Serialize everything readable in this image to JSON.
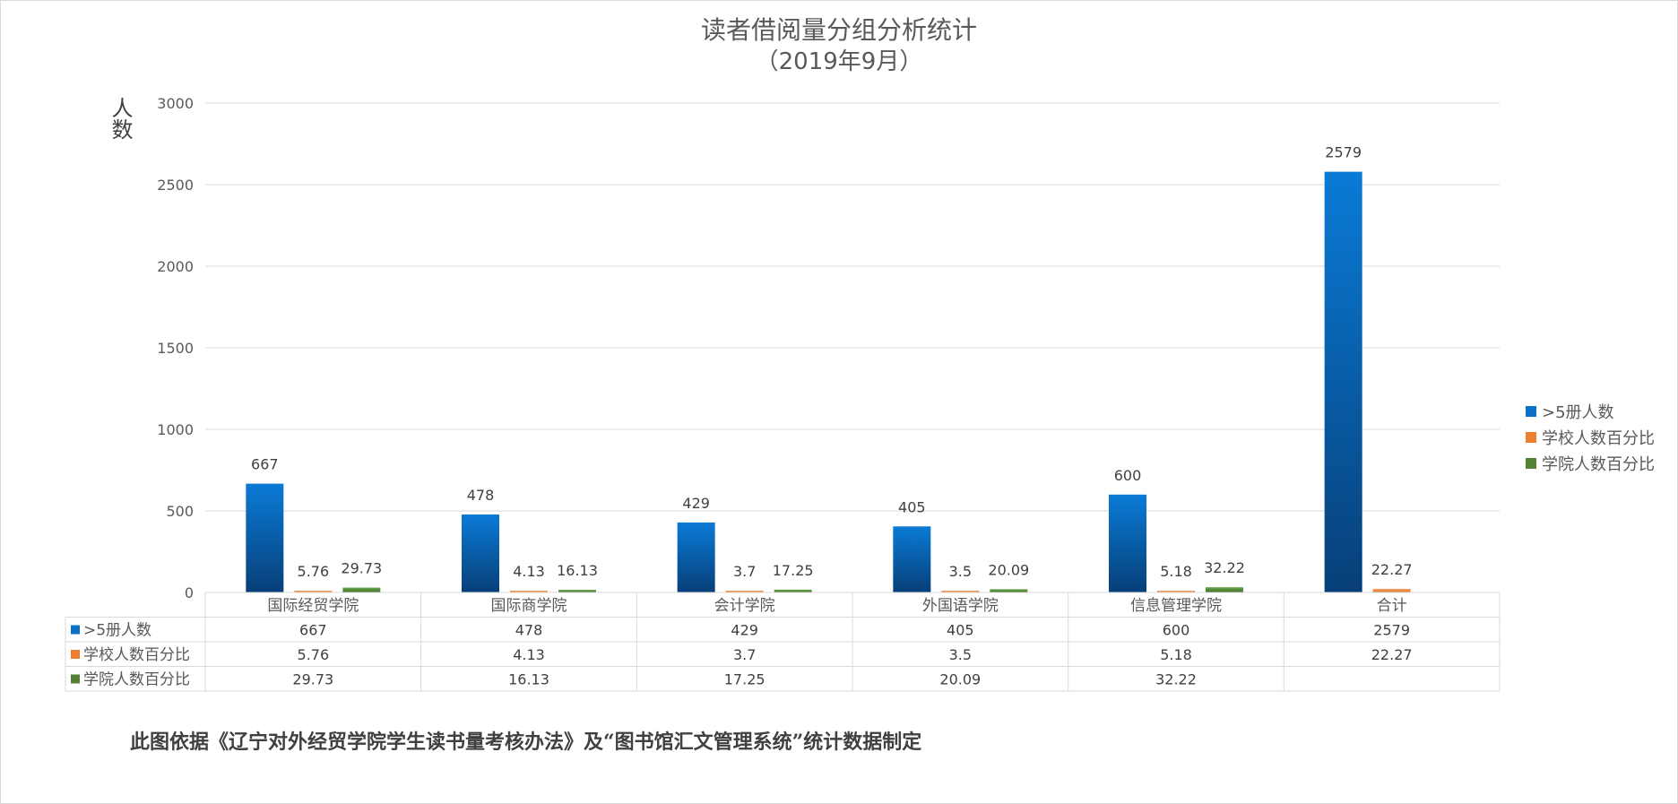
{
  "chart_data": {
    "type": "bar",
    "title": "读者借阅量分组分析统计",
    "subtitle": "（2019年9月）",
    "ylabel": "人数",
    "xlabel": "",
    "ylim": [
      0,
      3000
    ],
    "yticks": [
      0,
      500,
      1000,
      1500,
      2000,
      2500,
      3000
    ],
    "grid": true,
    "legend_position": "right",
    "categories": [
      "国际经贸学院",
      "国际商学院",
      "会计学院",
      "外国语学院",
      "信息管理学院",
      "合计"
    ],
    "series": [
      {
        "name": ">5册人数",
        "color": "#0a72c6",
        "values": [
          667,
          478,
          429,
          405,
          600,
          2579
        ]
      },
      {
        "name": "学校人数百分比",
        "color": "#ed7d31",
        "values": [
          5.76,
          4.13,
          3.7,
          3.5,
          5.18,
          22.27
        ]
      },
      {
        "name": "学院人数百分比",
        "color": "#548235",
        "values": [
          29.73,
          16.13,
          17.25,
          20.09,
          32.22,
          null
        ]
      }
    ],
    "data_table": true
  },
  "note": "此图依据《辽宁对外经贸学院学生读书量考核办法》及“图书馆汇文管理系统”统计数据制定"
}
